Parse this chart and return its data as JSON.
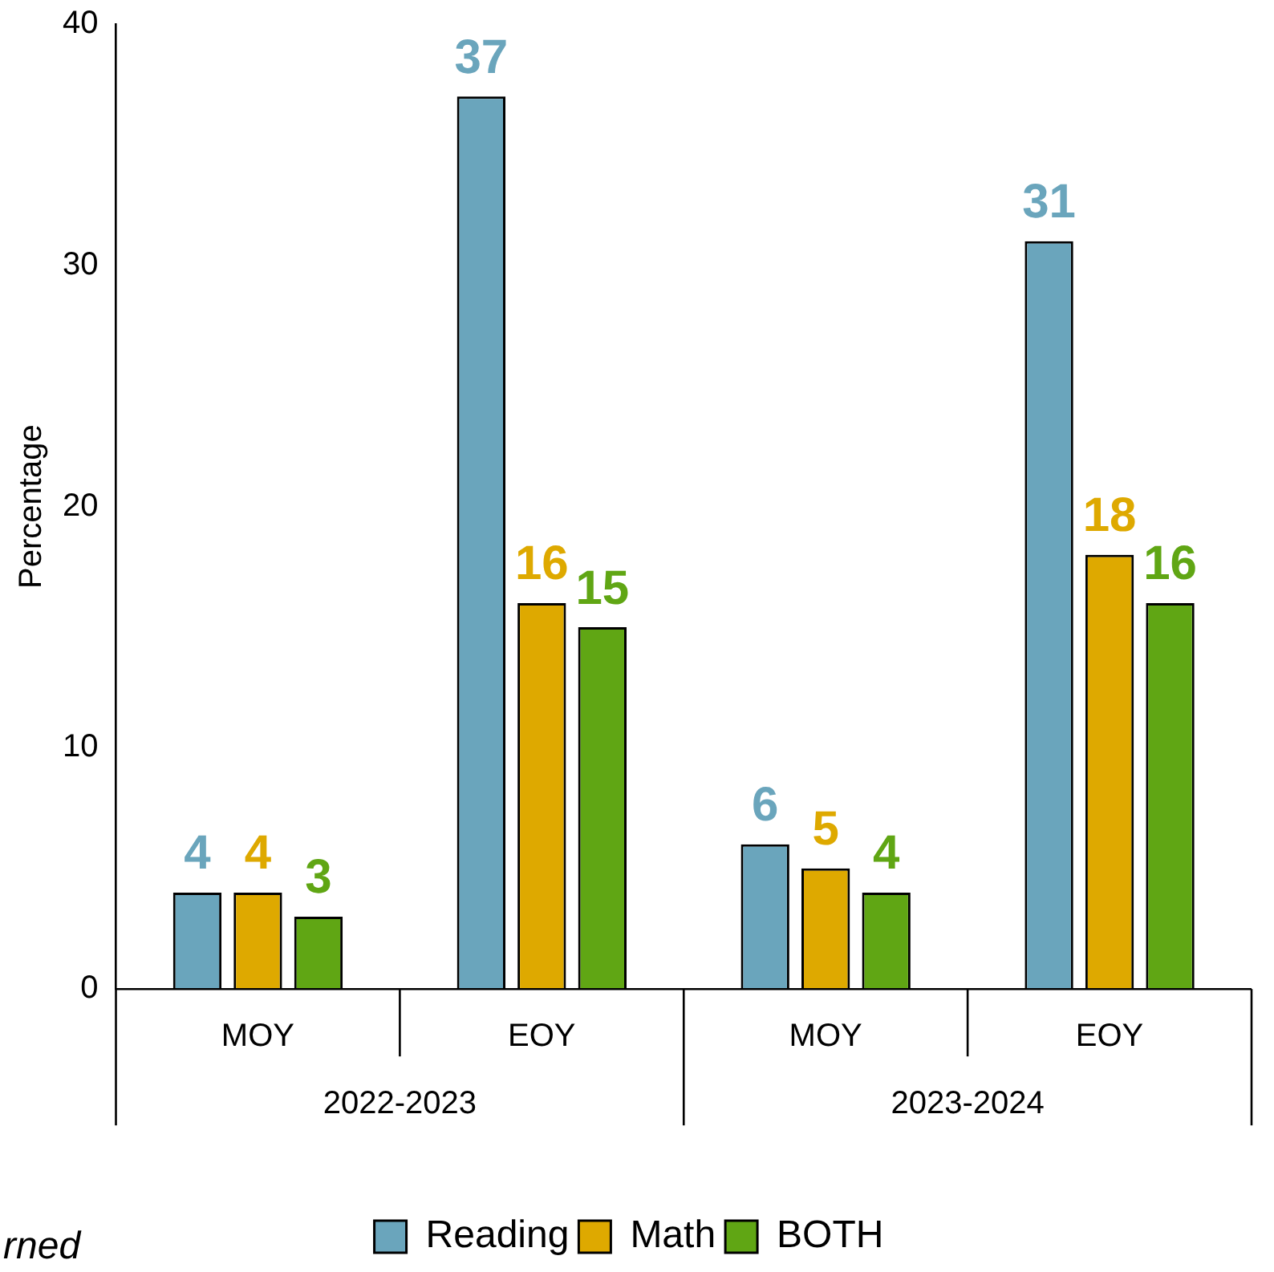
{
  "chart_data": {
    "type": "bar",
    "ylabel": "Percentage",
    "categories": [
      "MOY",
      "EOY",
      "MOY",
      "EOY"
    ],
    "series": [
      {
        "name": "Reading",
        "color": "#6aa5bc",
        "values": [
          4,
          37,
          6,
          31
        ]
      },
      {
        "name": "Math",
        "color": "#dea900",
        "values": [
          4,
          16,
          5,
          18
        ]
      },
      {
        "name": "BOTH",
        "color": "#60a614",
        "values": [
          3,
          15,
          4,
          16
        ]
      }
    ],
    "ylim": [
      0,
      40
    ],
    "yticks": [
      0,
      10,
      20,
      30,
      40
    ],
    "grid": false,
    "legend": "bottom",
    "data_labels": true,
    "annotations": [
      "2022-2023",
      "2023-2024",
      "rned"
    ]
  }
}
